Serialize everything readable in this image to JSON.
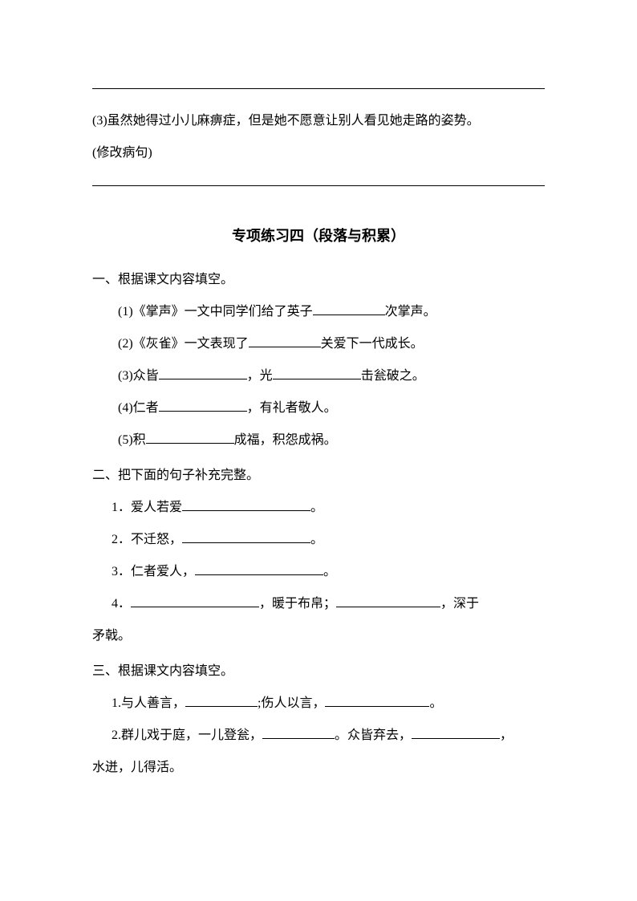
{
  "top": {
    "q3_text": "(3)虽然她得过小儿麻痹症，但是她不愿意让别人看见她走路的姿势。",
    "q3_note": "(修改病句)"
  },
  "title": "专项练习四（段落与积累）",
  "section1": {
    "heading": "一、根据课文内容填空。",
    "q1_a": "(1)《掌声》一文中同学们给了英子",
    "q1_b": "次掌声。",
    "q2_a": "(2)《灰雀》一文表现了",
    "q2_b": "关爱下一代成长。",
    "q3_a": "(3)众皆",
    "q3_b": "，光",
    "q3_c": "击瓮破之。",
    "q4_a": "(4)仁者",
    "q4_b": "，有礼者敬人。",
    "q5_a": "(5)积",
    "q5_b": "成福，积怨成祸。"
  },
  "section2": {
    "heading": "二、把下面的句子补充完整。",
    "q1_a": "1．爱人若爱",
    "q1_b": "。",
    "q2_a": "2．不迁怒，",
    "q2_b": "。",
    "q3_a": "3．仁者爱人，",
    "q3_b": "。",
    "q4_a": "4．",
    "q4_b": "，暖于布帛；",
    "q4_c": "，深于",
    "q4_line2": "矛戟。"
  },
  "section3": {
    "heading": "三、根据课文内容填空。",
    "q1_a": "1.与人善言，",
    "q1_b": ";伤人以言，",
    "q1_c": "。",
    "q2_a": "2.群儿戏于庭，一儿登瓮，",
    "q2_b": "。众皆弃去，",
    "q2_c": "，",
    "q2_line2": "水迸，儿得活。"
  }
}
